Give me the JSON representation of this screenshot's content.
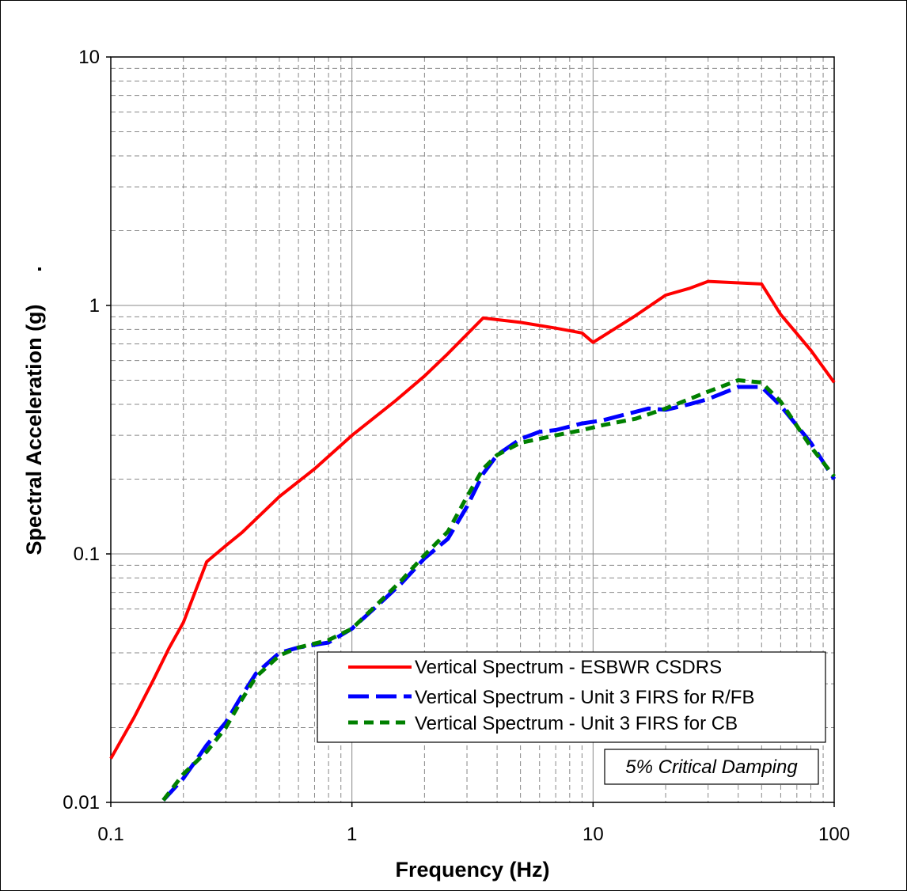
{
  "chart_data": {
    "type": "line",
    "xlabel": "Frequency (Hz)",
    "ylabel": "Spectral Acceleration (g)",
    "side_mark": ".",
    "x_scale": "log",
    "y_scale": "log",
    "xlim": [
      0.1,
      100
    ],
    "ylim": [
      0.01,
      10
    ],
    "x_ticks": [
      0.1,
      1,
      10,
      100
    ],
    "x_tick_labels": [
      "0.1",
      "1",
      "10",
      "100"
    ],
    "y_ticks": [
      0.01,
      0.1,
      1,
      10
    ],
    "y_tick_labels": [
      "0.01",
      "0.1",
      "1",
      "10"
    ],
    "grid": true,
    "legend_position": "bottom-right",
    "annotation": "5%  Critical Damping",
    "colors": {
      "red": "#ff0000",
      "blue": "#0000ff",
      "green": "#008000"
    },
    "series": [
      {
        "name": "Vertical Spectrum  - ESBWR CSDRS",
        "color": "#ff0000",
        "style": "solid",
        "points": [
          [
            0.1,
            0.015
          ],
          [
            0.125,
            0.022
          ],
          [
            0.15,
            0.031
          ],
          [
            0.175,
            0.042
          ],
          [
            0.2,
            0.053
          ],
          [
            0.25,
            0.093
          ],
          [
            0.3,
            0.108
          ],
          [
            0.35,
            0.122
          ],
          [
            0.5,
            0.17
          ],
          [
            0.7,
            0.22
          ],
          [
            1.0,
            0.3
          ],
          [
            1.5,
            0.41
          ],
          [
            2.0,
            0.52
          ],
          [
            2.5,
            0.64
          ],
          [
            3.5,
            0.89
          ],
          [
            5.0,
            0.855
          ],
          [
            7.0,
            0.81
          ],
          [
            9.0,
            0.775
          ],
          [
            10.0,
            0.71
          ],
          [
            15.0,
            0.91
          ],
          [
            20.0,
            1.1
          ],
          [
            25.0,
            1.17
          ],
          [
            30.0,
            1.25
          ],
          [
            50.0,
            1.22
          ],
          [
            60.0,
            0.92
          ],
          [
            80.0,
            0.66
          ],
          [
            100.0,
            0.49
          ]
        ]
      },
      {
        "name": "Vertical Spectrum - Unit 3 FIRS for R/FB",
        "color": "#0000ff",
        "style": "dashed",
        "points": [
          [
            0.165,
            0.0102
          ],
          [
            0.2,
            0.0125
          ],
          [
            0.25,
            0.017
          ],
          [
            0.3,
            0.021
          ],
          [
            0.35,
            0.027
          ],
          [
            0.4,
            0.033
          ],
          [
            0.5,
            0.04
          ],
          [
            0.6,
            0.042
          ],
          [
            0.8,
            0.044
          ],
          [
            1.0,
            0.05
          ],
          [
            1.3,
            0.063
          ],
          [
            1.6,
            0.076
          ],
          [
            2.0,
            0.096
          ],
          [
            2.5,
            0.115
          ],
          [
            3.0,
            0.155
          ],
          [
            3.5,
            0.21
          ],
          [
            4.0,
            0.25
          ],
          [
            5.0,
            0.29
          ],
          [
            6.0,
            0.31
          ],
          [
            7.0,
            0.315
          ],
          [
            9.0,
            0.335
          ],
          [
            11.0,
            0.345
          ],
          [
            13.0,
            0.36
          ],
          [
            17.0,
            0.385
          ],
          [
            20.0,
            0.38
          ],
          [
            25.0,
            0.4
          ],
          [
            30.0,
            0.42
          ],
          [
            40.0,
            0.47
          ],
          [
            50.0,
            0.47
          ],
          [
            60.0,
            0.395
          ],
          [
            80.0,
            0.28
          ],
          [
            100.0,
            0.2
          ]
        ]
      },
      {
        "name": "Vertical Spectrum - Unit 3 FIRS for CB",
        "color": "#008000",
        "style": "dotted",
        "points": [
          [
            0.165,
            0.0102
          ],
          [
            0.2,
            0.013
          ],
          [
            0.25,
            0.016
          ],
          [
            0.3,
            0.02
          ],
          [
            0.35,
            0.026
          ],
          [
            0.4,
            0.032
          ],
          [
            0.5,
            0.039
          ],
          [
            0.6,
            0.042
          ],
          [
            0.8,
            0.045
          ],
          [
            1.0,
            0.05
          ],
          [
            1.3,
            0.064
          ],
          [
            1.6,
            0.078
          ],
          [
            2.0,
            0.099
          ],
          [
            2.5,
            0.123
          ],
          [
            3.0,
            0.17
          ],
          [
            3.5,
            0.22
          ],
          [
            4.0,
            0.25
          ],
          [
            5.0,
            0.28
          ],
          [
            7.0,
            0.3
          ],
          [
            9.0,
            0.315
          ],
          [
            11.0,
            0.33
          ],
          [
            15.0,
            0.35
          ],
          [
            20.0,
            0.385
          ],
          [
            30.0,
            0.45
          ],
          [
            40.0,
            0.5
          ],
          [
            50.0,
            0.49
          ],
          [
            60.0,
            0.41
          ],
          [
            80.0,
            0.27
          ],
          [
            100.0,
            0.205
          ]
        ]
      }
    ]
  }
}
